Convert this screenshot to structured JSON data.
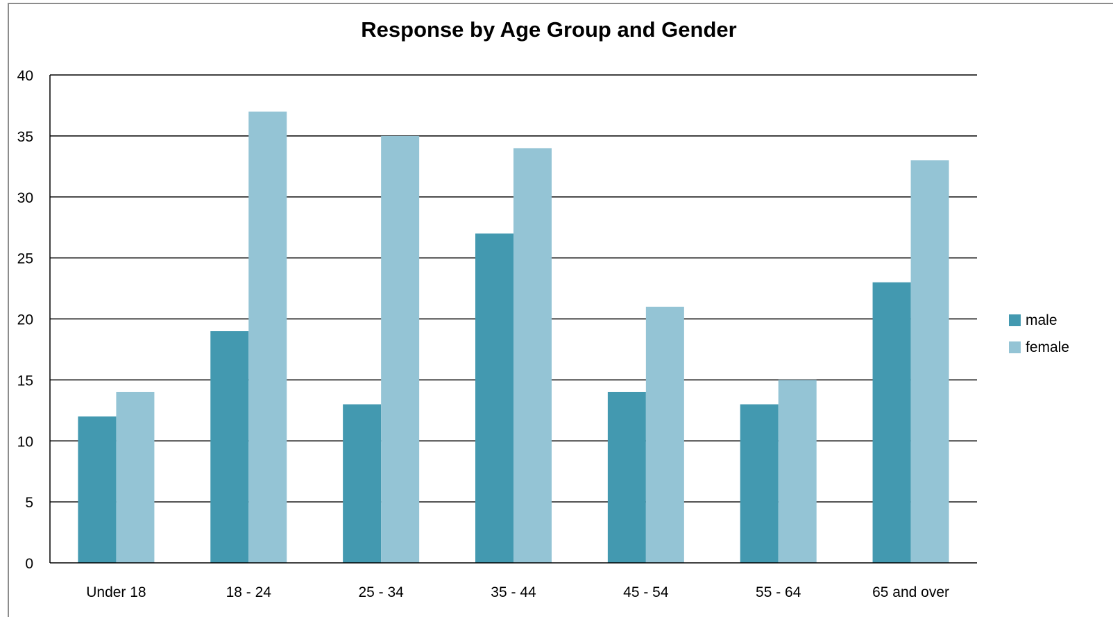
{
  "chart_data": {
    "type": "bar",
    "title": "Response by Age Group and Gender",
    "xlabel": "",
    "ylabel": "",
    "categories": [
      "Under 18",
      "18 - 24",
      "25 - 34",
      "35 - 44",
      "45 - 54",
      "55 - 64",
      "65 and over"
    ],
    "series": [
      {
        "name": "male",
        "color": "#4399b0",
        "values": [
          12,
          19,
          13,
          27,
          14,
          13,
          23
        ]
      },
      {
        "name": "female",
        "color": "#94c4d5",
        "values": [
          14,
          37,
          35,
          34,
          21,
          15,
          33
        ]
      }
    ],
    "ylim": [
      0,
      40
    ],
    "yticks": [
      0,
      5,
      10,
      15,
      20,
      25,
      30,
      35,
      40
    ],
    "grid": true,
    "legend_position": "right"
  }
}
